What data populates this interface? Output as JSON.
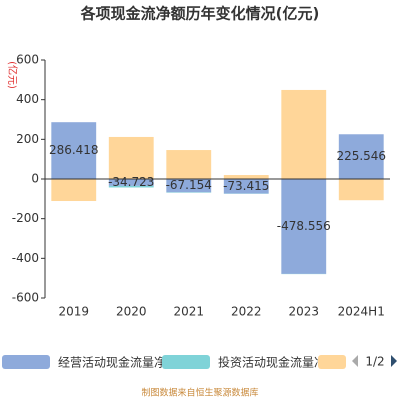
{
  "chart_data": {
    "type": "bar",
    "stacked": true,
    "title": "各项现金流净额历年变化情况(亿元)",
    "y_label": "(亿元)",
    "categories": [
      "2019",
      "2020",
      "2021",
      "2022",
      "2023",
      "2024H1"
    ],
    "series": [
      {
        "name": "经营活动现金流量净额",
        "color": "#8eaadb",
        "values": [
          286.418,
          -34.723,
          -67.154,
          -73.415,
          -478.556,
          225.546
        ],
        "data_labels": true
      },
      {
        "name": "投资活动现金流量净额",
        "color": "#7fd3d8",
        "values": [
          -1,
          -8,
          -2,
          -1,
          -1,
          -1
        ]
      },
      {
        "color": "#ffd699",
        "values": [
          -110,
          212,
          146,
          20,
          449,
          -106
        ]
      }
    ],
    "ylim": [
      -600,
      600
    ],
    "yticks": [
      -600,
      -400,
      -200,
      0,
      200,
      400,
      600
    ],
    "grid": false,
    "legend_position": "bottom",
    "legend_page": "1/2",
    "source": "制图数据来自恒生聚源数据库"
  }
}
